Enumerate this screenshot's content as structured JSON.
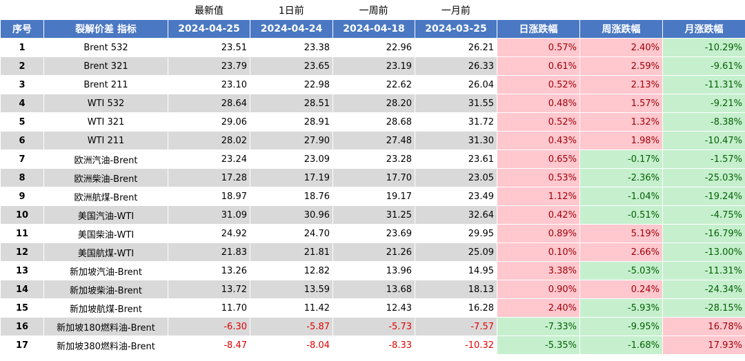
{
  "header_top": [
    "最新值",
    "1日前",
    "一周前",
    "一月前"
  ],
  "table": {
    "columns": [
      "序号",
      "裂解价差 指标",
      "2024-04-25",
      "2024-04-24",
      "2024-04-18",
      "2024-03-25",
      "日涨跌幅",
      "周涨跌幅",
      "月涨跌幅"
    ],
    "rows": [
      [
        1,
        "Brent 532",
        "23.51",
        "23.38",
        "22.96",
        "26.21",
        "0.57%",
        "2.40%",
        "-10.29%"
      ],
      [
        2,
        "Brent 321",
        "23.79",
        "23.65",
        "23.19",
        "26.33",
        "0.61%",
        "2.59%",
        "-9.61%"
      ],
      [
        3,
        "Brent 211",
        "23.10",
        "22.98",
        "22.62",
        "26.04",
        "0.52%",
        "2.13%",
        "-11.31%"
      ],
      [
        4,
        "WTI 532",
        "28.64",
        "28.51",
        "28.20",
        "31.55",
        "0.48%",
        "1.57%",
        "-9.21%"
      ],
      [
        5,
        "WTI 321",
        "29.06",
        "28.91",
        "28.68",
        "31.72",
        "0.52%",
        "1.32%",
        "-8.38%"
      ],
      [
        6,
        "WTI 211",
        "28.02",
        "27.90",
        "27.48",
        "31.30",
        "0.43%",
        "1.98%",
        "-10.47%"
      ],
      [
        7,
        "欧洲汽油-Brent",
        "23.24",
        "23.09",
        "23.28",
        "23.61",
        "0.65%",
        "-0.17%",
        "-1.57%"
      ],
      [
        8,
        "欧洲柴油-Brent",
        "17.28",
        "17.19",
        "17.70",
        "23.05",
        "0.53%",
        "-2.36%",
        "-25.03%"
      ],
      [
        9,
        "欧洲航煤-Brent",
        "18.97",
        "18.76",
        "19.17",
        "23.49",
        "1.12%",
        "-1.04%",
        "-19.24%"
      ],
      [
        10,
        "美国汽油-WTI",
        "31.09",
        "30.96",
        "31.25",
        "32.64",
        "0.42%",
        "-0.51%",
        "-4.75%"
      ],
      [
        11,
        "美国柴油-WTI",
        "24.92",
        "24.70",
        "23.69",
        "29.95",
        "0.89%",
        "5.19%",
        "-16.79%"
      ],
      [
        12,
        "美国航煤-WTI",
        "21.83",
        "21.81",
        "21.26",
        "25.09",
        "0.10%",
        "2.66%",
        "-13.00%"
      ],
      [
        13,
        "新加坡汽油-Brent",
        "13.26",
        "12.82",
        "13.96",
        "14.95",
        "3.38%",
        "-5.03%",
        "-11.31%"
      ],
      [
        14,
        "新加坡柴油-Brent",
        "13.72",
        "13.59",
        "13.68",
        "18.13",
        "0.90%",
        "0.24%",
        "-24.34%"
      ],
      [
        15,
        "新加坡航煤-Brent",
        "11.70",
        "11.42",
        "12.43",
        "16.28",
        "2.40%",
        "-5.93%",
        "-28.15%"
      ],
      [
        16,
        "新加坡180燃料油-Brent",
        "-6.30",
        "-5.87",
        "-5.73",
        "-7.57",
        "-7.33%",
        "-9.95%",
        "16.78%"
      ],
      [
        17,
        "新加坡380燃料油-Brent",
        "-8.47",
        "-8.04",
        "-8.33",
        "-10.32",
        "-5.35%",
        "-1.68%",
        "17.93%"
      ]
    ]
  }
}
